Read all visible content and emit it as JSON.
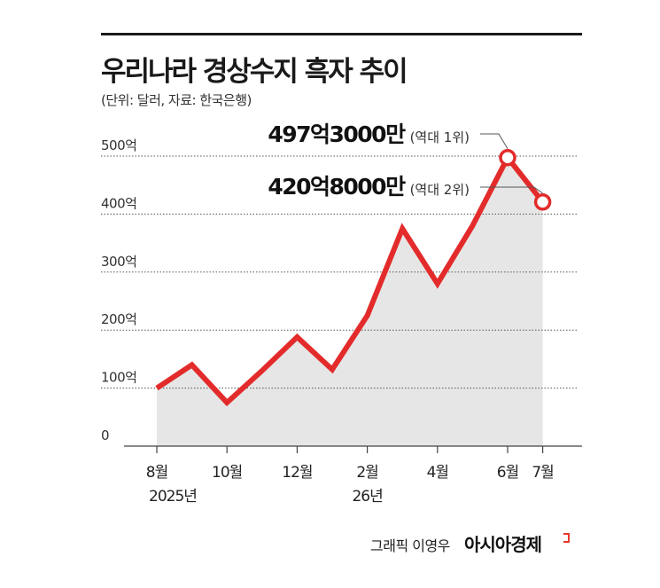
{
  "header": {
    "title": "우리나라 경상수지 흑자 추이",
    "subtitle": "(단위: 달러, 자료: 한국은행)"
  },
  "chart_data": {
    "type": "line",
    "title": "우리나라 경상수지 흑자 추이",
    "subtitle": "(단위: 달러, 자료: 한국은행)",
    "xlabel": "",
    "ylabel": "",
    "ylim": [
      0,
      500
    ],
    "yticks": [
      {
        "value": 0,
        "label": "0"
      },
      {
        "value": 100,
        "label": "100억"
      },
      {
        "value": 200,
        "label": "200억"
      },
      {
        "value": 300,
        "label": "300억"
      },
      {
        "value": 400,
        "label": "400억"
      },
      {
        "value": 500,
        "label": "500억"
      }
    ],
    "x": [
      "2025-08",
      "2025-09",
      "2025-10",
      "2025-11",
      "2025-12",
      "2026-01",
      "2026-02",
      "2026-03",
      "2026-04",
      "2026-05",
      "2026-06",
      "2026-07"
    ],
    "xticks": [
      {
        "index": 0,
        "lines": [
          "8월",
          "2025년"
        ]
      },
      {
        "index": 2,
        "lines": [
          "10월"
        ]
      },
      {
        "index": 4,
        "lines": [
          "12월"
        ]
      },
      {
        "index": 6,
        "lines": [
          "2월",
          "26년"
        ]
      },
      {
        "index": 8,
        "lines": [
          "4월"
        ]
      },
      {
        "index": 10,
        "lines": [
          "6월"
        ]
      },
      {
        "index": 11,
        "lines": [
          "7월"
        ]
      }
    ],
    "series": [
      {
        "values": [
          100,
          140,
          75,
          130,
          188,
          132,
          225,
          375,
          280,
          380,
          497.3,
          420.8
        ]
      }
    ],
    "annotations": [
      {
        "index": 10,
        "value_label": "497억3000만",
        "note": "(역대 1위)"
      },
      {
        "index": 11,
        "value_label": "420억8000만",
        "note": "(역대 2위)"
      }
    ],
    "grid": true,
    "area_fill": true,
    "colors": {
      "line": "#e32b2b",
      "area": "#e6e6e6",
      "grid": "#555555"
    }
  },
  "footer": {
    "credit": "그래픽 이영우",
    "brand": "아시아경제"
  }
}
